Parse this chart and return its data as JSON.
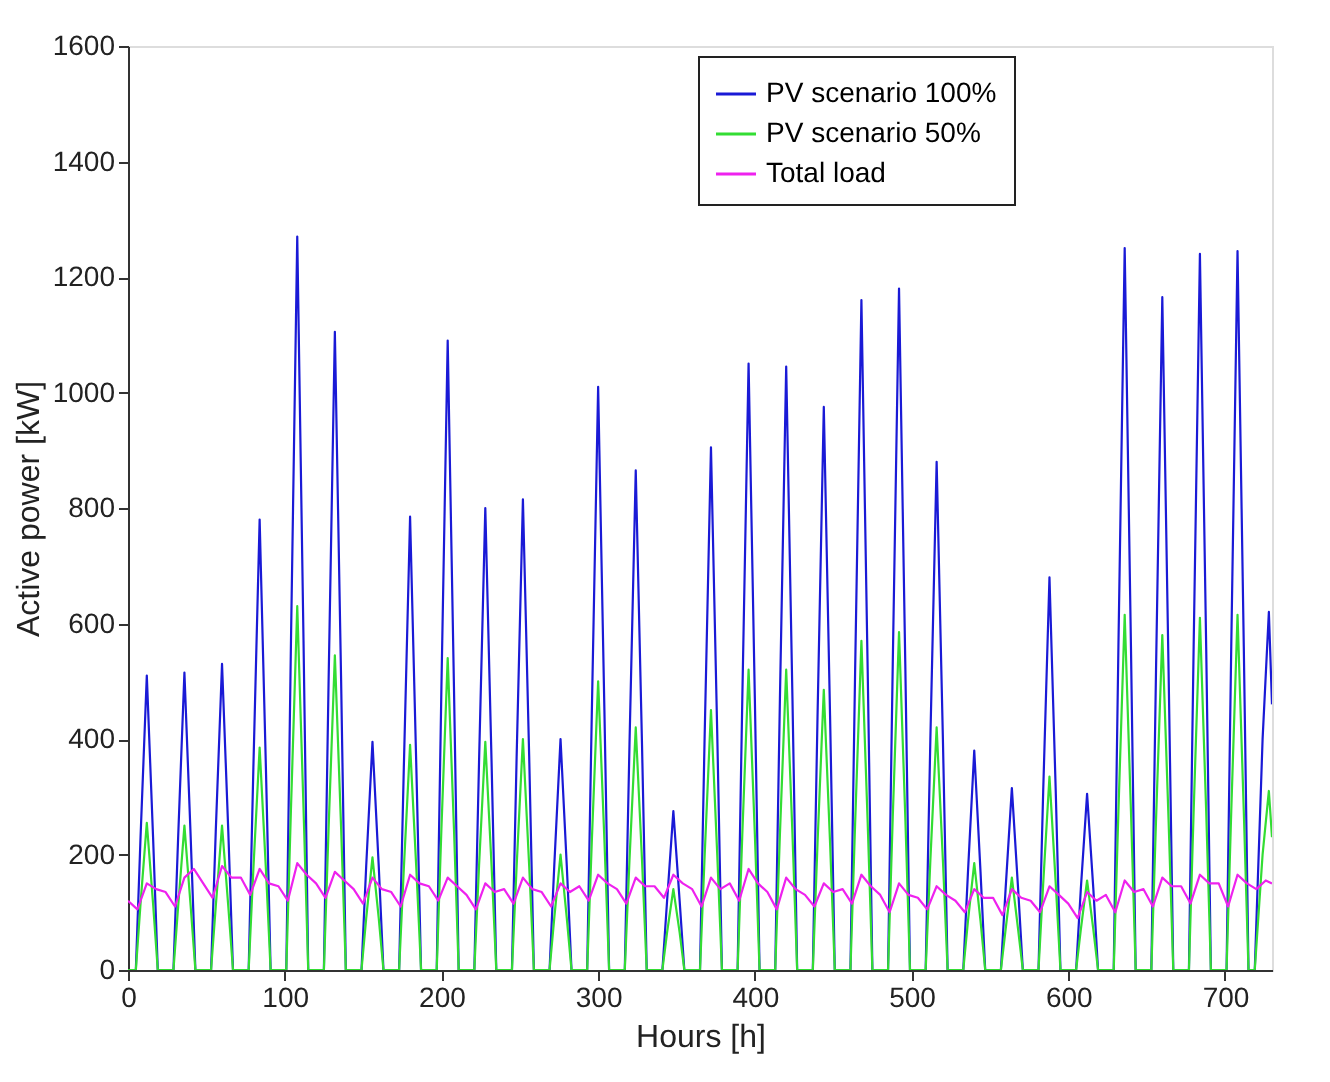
{
  "chart_data": {
    "type": "line",
    "xlabel": "Hours [h]",
    "ylabel": "Active power [kW]",
    "xlim": [
      0,
      730
    ],
    "xticks": [
      0,
      100,
      200,
      300,
      400,
      500,
      600,
      700
    ],
    "ylim": [
      0,
      1600
    ],
    "yticks": [
      0,
      200,
      400,
      600,
      800,
      1000,
      1200,
      1400,
      1600
    ],
    "grid": false,
    "legend": "top",
    "marker": "none",
    "line_style": "solid",
    "x": [
      0,
      5,
      8,
      12,
      16,
      19,
      29,
      32,
      36,
      40,
      43,
      53,
      56,
      60,
      64,
      67,
      77,
      80,
      84,
      88,
      91,
      101,
      104,
      108,
      112,
      115,
      125,
      128,
      132,
      136,
      139,
      149,
      152,
      156,
      160,
      163,
      173,
      176,
      180,
      184,
      187,
      197,
      200,
      204,
      208,
      211,
      221,
      224,
      228,
      232,
      235,
      245,
      248,
      252,
      256,
      259,
      269,
      272,
      276,
      280,
      283,
      293,
      296,
      300,
      304,
      307,
      317,
      320,
      324,
      328,
      331,
      341,
      344,
      348,
      352,
      355,
      365,
      368,
      372,
      376,
      379,
      389,
      392,
      396,
      400,
      403,
      413,
      416,
      420,
      424,
      427,
      437,
      440,
      444,
      448,
      451,
      461,
      464,
      468,
      472,
      475,
      485,
      488,
      492,
      496,
      499,
      509,
      512,
      516,
      520,
      523,
      533,
      536,
      540,
      544,
      547,
      557,
      560,
      564,
      568,
      571,
      581,
      584,
      588,
      592,
      595,
      605,
      608,
      612,
      616,
      619,
      629,
      632,
      636,
      640,
      643,
      653,
      656,
      660,
      664,
      667,
      677,
      680,
      684,
      688,
      691,
      701,
      704,
      708,
      712,
      715,
      719,
      724,
      728,
      730
    ],
    "series": [
      {
        "name": "PV scenario 100%",
        "color": "#1a1ad6",
        "values": [
          0,
          0,
          230,
          510,
          230,
          0,
          0,
          230,
          515,
          230,
          0,
          0,
          240,
          530,
          240,
          0,
          0,
          350,
          780,
          350,
          0,
          0,
          570,
          1270,
          570,
          0,
          0,
          500,
          1105,
          500,
          0,
          0,
          180,
          395,
          180,
          0,
          0,
          350,
          785,
          350,
          0,
          0,
          490,
          1090,
          490,
          0,
          0,
          360,
          800,
          360,
          0,
          0,
          370,
          815,
          370,
          0,
          0,
          180,
          400,
          180,
          0,
          0,
          450,
          1010,
          450,
          0,
          0,
          390,
          865,
          390,
          0,
          0,
          120,
          275,
          120,
          0,
          0,
          410,
          905,
          410,
          0,
          0,
          470,
          1050,
          470,
          0,
          0,
          470,
          1045,
          470,
          0,
          0,
          440,
          975,
          440,
          0,
          0,
          520,
          1160,
          520,
          0,
          0,
          530,
          1180,
          530,
          0,
          0,
          400,
          880,
          400,
          0,
          0,
          170,
          380,
          170,
          0,
          0,
          140,
          315,
          140,
          0,
          0,
          310,
          680,
          310,
          0,
          0,
          140,
          305,
          140,
          0,
          0,
          560,
          1250,
          560,
          0,
          0,
          520,
          1165,
          520,
          0,
          0,
          560,
          1240,
          560,
          0,
          0,
          560,
          1245,
          560,
          0,
          0,
          400,
          620,
          460
        ]
      },
      {
        "name": "PV scenario 50%",
        "color": "#33dd33",
        "values": [
          0,
          0,
          115,
          255,
          115,
          0,
          0,
          110,
          250,
          110,
          0,
          0,
          110,
          250,
          110,
          0,
          0,
          175,
          385,
          175,
          0,
          0,
          280,
          630,
          280,
          0,
          0,
          245,
          545,
          245,
          0,
          0,
          90,
          195,
          90,
          0,
          0,
          175,
          390,
          175,
          0,
          0,
          245,
          540,
          245,
          0,
          0,
          180,
          395,
          180,
          0,
          0,
          180,
          400,
          180,
          0,
          0,
          90,
          200,
          90,
          0,
          0,
          225,
          500,
          225,
          0,
          0,
          190,
          420,
          190,
          0,
          0,
          65,
          140,
          65,
          0,
          0,
          200,
          450,
          200,
          0,
          0,
          235,
          520,
          235,
          0,
          0,
          235,
          520,
          235,
          0,
          0,
          220,
          485,
          220,
          0,
          0,
          255,
          570,
          255,
          0,
          0,
          265,
          585,
          265,
          0,
          0,
          190,
          420,
          190,
          0,
          0,
          85,
          185,
          85,
          0,
          0,
          70,
          160,
          70,
          0,
          0,
          150,
          335,
          150,
          0,
          0,
          70,
          155,
          70,
          0,
          0,
          275,
          615,
          275,
          0,
          0,
          260,
          580,
          260,
          0,
          0,
          275,
          610,
          275,
          0,
          0,
          275,
          615,
          275,
          0,
          0,
          200,
          310,
          230
        ]
      },
      {
        "name": "Total load",
        "color": "#ee22ee",
        "x": [
          0,
          6,
          12,
          18,
          24,
          30,
          36,
          42,
          48,
          54,
          60,
          66,
          72,
          78,
          84,
          90,
          96,
          102,
          108,
          114,
          120,
          126,
          132,
          138,
          144,
          150,
          156,
          162,
          168,
          174,
          180,
          186,
          192,
          198,
          204,
          210,
          216,
          222,
          228,
          234,
          240,
          246,
          252,
          258,
          264,
          270,
          276,
          282,
          288,
          294,
          300,
          306,
          312,
          318,
          324,
          330,
          336,
          342,
          348,
          354,
          360,
          366,
          372,
          378,
          384,
          390,
          396,
          402,
          408,
          414,
          420,
          426,
          432,
          438,
          444,
          450,
          456,
          462,
          468,
          474,
          480,
          486,
          492,
          498,
          504,
          510,
          516,
          522,
          528,
          534,
          540,
          546,
          552,
          558,
          564,
          570,
          576,
          582,
          588,
          594,
          600,
          606,
          612,
          618,
          624,
          630,
          636,
          642,
          648,
          654,
          660,
          666,
          672,
          678,
          684,
          690,
          696,
          702,
          708,
          714,
          720,
          726,
          730
        ],
        "values": [
          120,
          105,
          150,
          140,
          135,
          110,
          160,
          175,
          150,
          125,
          180,
          160,
          160,
          130,
          175,
          150,
          145,
          120,
          185,
          165,
          150,
          125,
          170,
          155,
          140,
          115,
          160,
          140,
          135,
          110,
          165,
          150,
          145,
          120,
          160,
          145,
          130,
          105,
          150,
          135,
          140,
          115,
          160,
          140,
          135,
          110,
          150,
          135,
          145,
          120,
          165,
          150,
          140,
          115,
          160,
          145,
          145,
          125,
          165,
          150,
          140,
          110,
          160,
          140,
          150,
          120,
          175,
          150,
          135,
          105,
          160,
          140,
          130,
          110,
          150,
          135,
          140,
          115,
          165,
          145,
          130,
          100,
          150,
          130,
          125,
          105,
          145,
          130,
          120,
          100,
          140,
          125,
          125,
          95,
          140,
          125,
          120,
          100,
          145,
          130,
          115,
          90,
          135,
          120,
          130,
          100,
          155,
          135,
          140,
          110,
          160,
          145,
          145,
          115,
          165,
          150,
          150,
          110,
          165,
          150,
          140,
          155,
          150
        ]
      }
    ]
  }
}
